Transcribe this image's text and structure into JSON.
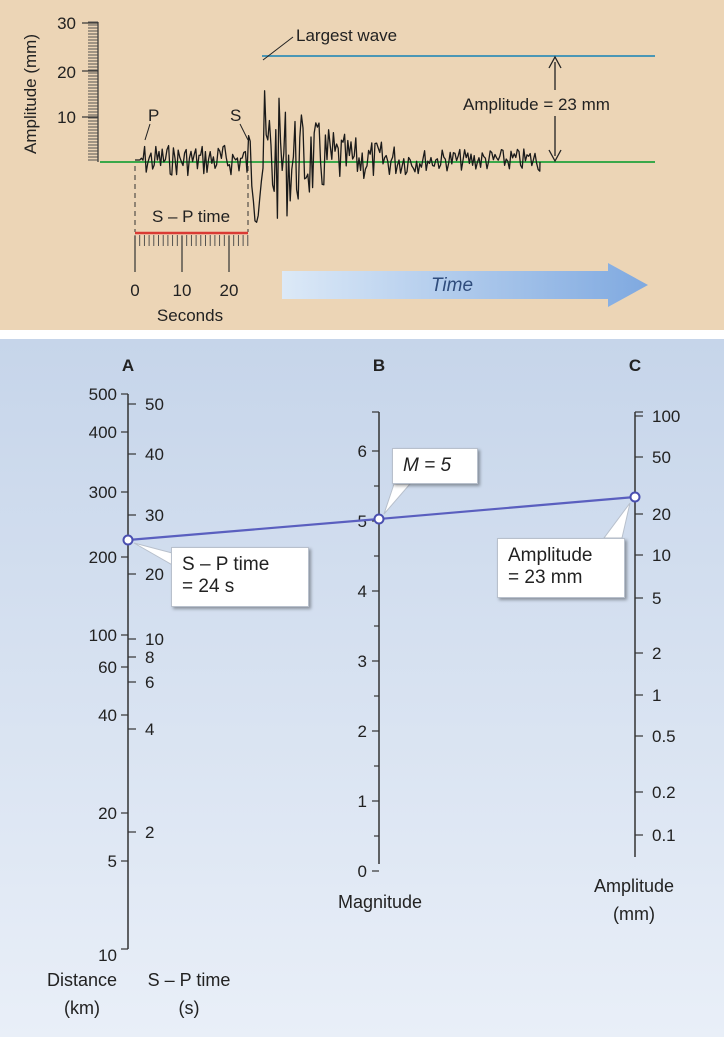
{
  "top": {
    "y_axis_label": "Amplitude (mm)",
    "y_ticks": [
      "30",
      "20",
      "10"
    ],
    "p_label": "P",
    "s_label": "S",
    "largest_wave_label": "Largest wave",
    "amplitude_label": "Amplitude = 23 mm",
    "sp_time_label": "S – P time",
    "x_ticks": [
      "0",
      "10",
      "20"
    ],
    "x_axis_label": "Seconds",
    "time_label": "Time",
    "colors": {
      "background": "#ecd5b6",
      "amplitude_line": "#4a97b6",
      "baseline": "#3aa84a",
      "sp_bar": "#d93a34",
      "arrow": "#8fb4e4"
    }
  },
  "bottom": {
    "scale_a_header": "A",
    "scale_b_header": "B",
    "scale_c_header": "C",
    "distance_ticks": [
      "500",
      "400",
      "300",
      "200",
      "100",
      "60",
      "40",
      "20",
      "5",
      "10"
    ],
    "sp_ticks": [
      "50",
      "40",
      "30",
      "20",
      "10",
      "8",
      "6",
      "4",
      "2"
    ],
    "magnitude_ticks": [
      "6",
      "5",
      "4",
      "3",
      "2",
      "1",
      "0"
    ],
    "amplitude_ticks": [
      "100",
      "50",
      "20",
      "10",
      "5",
      "2",
      "1",
      "0.5",
      "0.2",
      "0.1"
    ],
    "distance_label": [
      "Distance",
      "(km)"
    ],
    "sp_label": [
      "S – P time",
      "(s)"
    ],
    "magnitude_label": "Magnitude",
    "amplitude_label": [
      "Amplitude",
      "(mm)"
    ],
    "callout_sp": [
      "S – P time",
      "= 24 s"
    ],
    "callout_m": "M = 5",
    "callout_amp": [
      "Amplitude",
      "= 23 mm"
    ],
    "colors": {
      "line": "#5a5fbf",
      "axis": "#333333"
    }
  }
}
